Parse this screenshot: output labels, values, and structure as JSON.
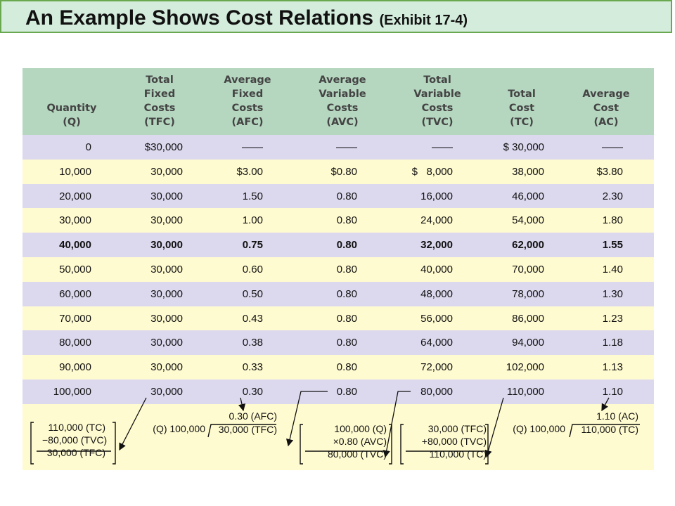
{
  "title": {
    "main": "An Example Shows Cost Relations",
    "sub": "(Exhibit 17-4)"
  },
  "table": {
    "headers": [
      [
        "Quantity",
        "(Q)"
      ],
      [
        "Total",
        "Fixed",
        "Costs",
        "(TFC)"
      ],
      [
        "Average",
        "Fixed",
        "Costs",
        "(AFC)"
      ],
      [
        "Average",
        "Variable",
        "Costs",
        "(AVC)"
      ],
      [
        "Total",
        "Variable",
        "Costs",
        "(TVC)"
      ],
      [
        "Total",
        "Cost",
        "(TC)"
      ],
      [
        "Average",
        "Cost",
        "(AC)"
      ]
    ],
    "rows": [
      [
        "0",
        "$30,000",
        "——",
        "——",
        "——",
        "$ 30,000",
        "——"
      ],
      [
        "10,000",
        "30,000",
        "$3.00",
        "$0.80",
        "$   8,000",
        "38,000",
        "$3.80"
      ],
      [
        "20,000",
        "30,000",
        "1.50",
        "0.80",
        "16,000",
        "46,000",
        "2.30"
      ],
      [
        "30,000",
        "30,000",
        "1.00",
        "0.80",
        "24,000",
        "54,000",
        "1.80"
      ],
      [
        "40,000",
        "30,000",
        "0.75",
        "0.80",
        "32,000",
        "62,000",
        "1.55"
      ],
      [
        "50,000",
        "30,000",
        "0.60",
        "0.80",
        "40,000",
        "70,000",
        "1.40"
      ],
      [
        "60,000",
        "30,000",
        "0.50",
        "0.80",
        "48,000",
        "78,000",
        "1.30"
      ],
      [
        "70,000",
        "30,000",
        "0.43",
        "0.80",
        "56,000",
        "86,000",
        "1.23"
      ],
      [
        "80,000",
        "30,000",
        "0.38",
        "0.80",
        "64,000",
        "94,000",
        "1.18"
      ],
      [
        "90,000",
        "30,000",
        "0.33",
        "0.80",
        "72,000",
        "102,000",
        "1.13"
      ],
      [
        "100,000",
        "30,000",
        "0.30",
        "0.80",
        "80,000",
        "110,000",
        "1.10"
      ]
    ],
    "bold_row_index": 4
  },
  "calculations": {
    "tfc": {
      "line1": "110,000  (TC)",
      "line2": "−80,000  (TVC)",
      "line3": "30,000  (TFC)"
    },
    "afc": {
      "quotient": "0.30 (AFC)",
      "divisor": "(Q) 100,000",
      "dividend": "30,000 (TFC)"
    },
    "tvc": {
      "line1": "100,000  (Q)",
      "line2": "×0.80  (AVC)",
      "line3": "80,000  (TVC)"
    },
    "tc": {
      "line1": "30,000  (TFC)",
      "line2": "+80,000  (TVC)",
      "line3": "110,000  (TC)"
    },
    "ac": {
      "quotient": "1.10 (AC)",
      "divisor": "(Q) 100,000",
      "dividend": "110,000 (TC)"
    }
  },
  "colors": {
    "header": "#b5d6bf",
    "row_purple": "#dcd8ee",
    "row_yellow": "#fffbd0",
    "title_bg": "#d4ecdc",
    "title_border": "#6aa84f"
  }
}
